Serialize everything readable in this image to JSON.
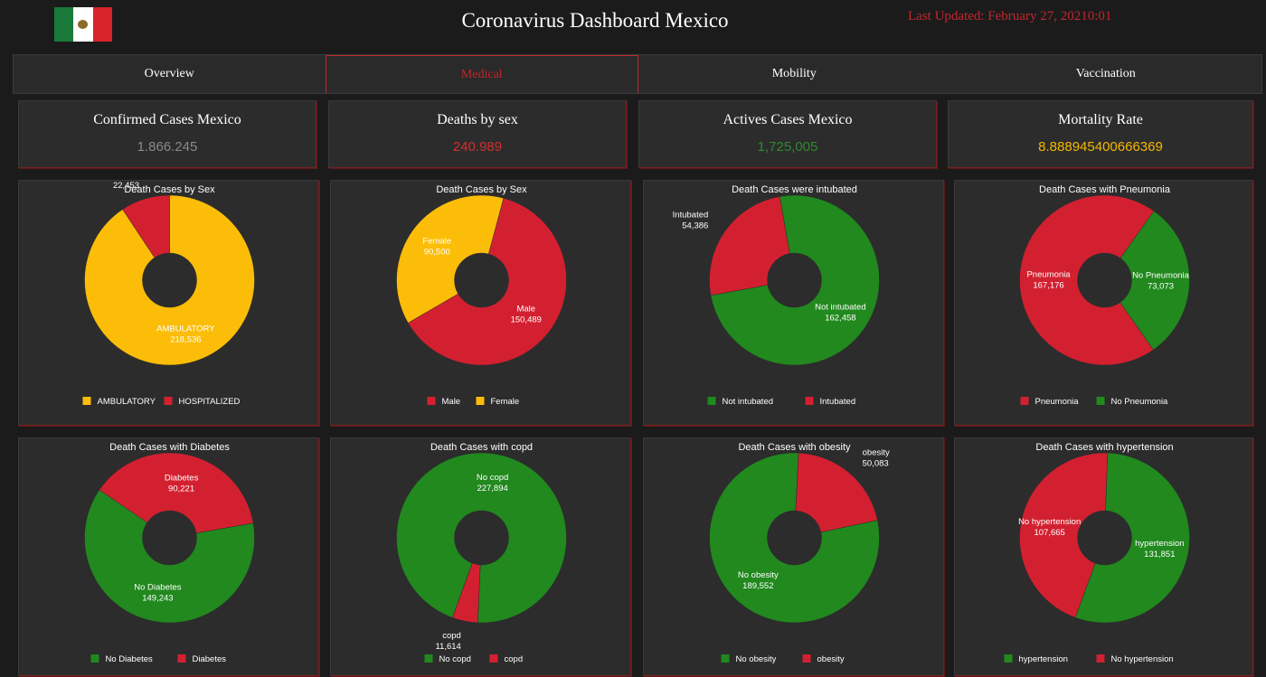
{
  "header": {
    "title": "Coronavirus Dashboard Mexico",
    "updated": "Last Updated: February 27, 20210:01"
  },
  "tabs": [
    {
      "label": "Overview",
      "active": false
    },
    {
      "label": "Medical",
      "active": true
    },
    {
      "label": "Mobility",
      "active": false
    },
    {
      "label": "Vaccination",
      "active": false
    }
  ],
  "kpis": [
    {
      "title": "Confirmed Cases Mexico",
      "value": "1.866.245",
      "color": "#8a8a8a"
    },
    {
      "title": "Deaths by sex",
      "value": "240.989",
      "color": "#d32f2f"
    },
    {
      "title": "Actives Cases Mexico",
      "value": "1,725,005",
      "color": "#2e8b2e"
    },
    {
      "title": "Mortality Rate",
      "value": "8.888945400666369",
      "color": "#f5b800"
    }
  ],
  "colors": {
    "yellow": "#fbbd08",
    "red": "#d32030",
    "green": "#21891e"
  },
  "chart_data": [
    {
      "type": "pie",
      "title": "Death Cases by Sex",
      "slices": [
        {
          "label": "AMBULATORY",
          "value": 218536,
          "display": "218,536",
          "color": "#fbbd08"
        },
        {
          "label": "HOSPITALIZED",
          "value": 22453,
          "display": "22,453",
          "color": "#d32030"
        }
      ]
    },
    {
      "type": "pie",
      "title": "Death Cases by Sex",
      "slices": [
        {
          "label": "Male",
          "value": 150489,
          "display": "150,489",
          "color": "#d32030"
        },
        {
          "label": "Female",
          "value": 90500,
          "display": "90,500",
          "color": "#fbbd08"
        }
      ]
    },
    {
      "type": "pie",
      "title": "Death Cases were intubated",
      "slices": [
        {
          "label": "Not intubated",
          "value": 162458,
          "display": "162,458",
          "color": "#21891e"
        },
        {
          "label": "Intubated",
          "value": 54386,
          "display": "54,386",
          "color": "#d32030"
        }
      ]
    },
    {
      "type": "pie",
      "title": "Death Cases with Pneumonia",
      "slices": [
        {
          "label": "Pneumonia",
          "value": 167176,
          "display": "167,176",
          "color": "#d32030"
        },
        {
          "label": "No Pneumonia",
          "value": 73073,
          "display": "73,073",
          "color": "#21891e"
        }
      ]
    },
    {
      "type": "pie",
      "title": "Death Cases with Diabetes",
      "slices": [
        {
          "label": "No Diabetes",
          "value": 149243,
          "display": "149,243",
          "color": "#21891e"
        },
        {
          "label": "Diabetes",
          "value": 90221,
          "display": "90,221",
          "color": "#d32030"
        }
      ]
    },
    {
      "type": "pie",
      "title": "Death Cases with copd",
      "slices": [
        {
          "label": "No copd",
          "value": 227894,
          "display": "227,894",
          "color": "#21891e"
        },
        {
          "label": "copd",
          "value": 11614,
          "display": "11,614",
          "color": "#d32030"
        }
      ]
    },
    {
      "type": "pie",
      "title": "Death Cases with obesity",
      "slices": [
        {
          "label": "No obesity",
          "value": 189552,
          "display": "189,552",
          "color": "#21891e"
        },
        {
          "label": "obesity",
          "value": 50083,
          "display": "50,083",
          "color": "#d32030"
        }
      ]
    },
    {
      "type": "pie",
      "title": "Death Cases with hypertension",
      "slices": [
        {
          "label": "hypertension",
          "value": 131851,
          "display": "131,851",
          "color": "#21891e"
        },
        {
          "label": "No hypertension",
          "value": 107665,
          "display": "107,665",
          "color": "#d32030"
        }
      ]
    }
  ]
}
